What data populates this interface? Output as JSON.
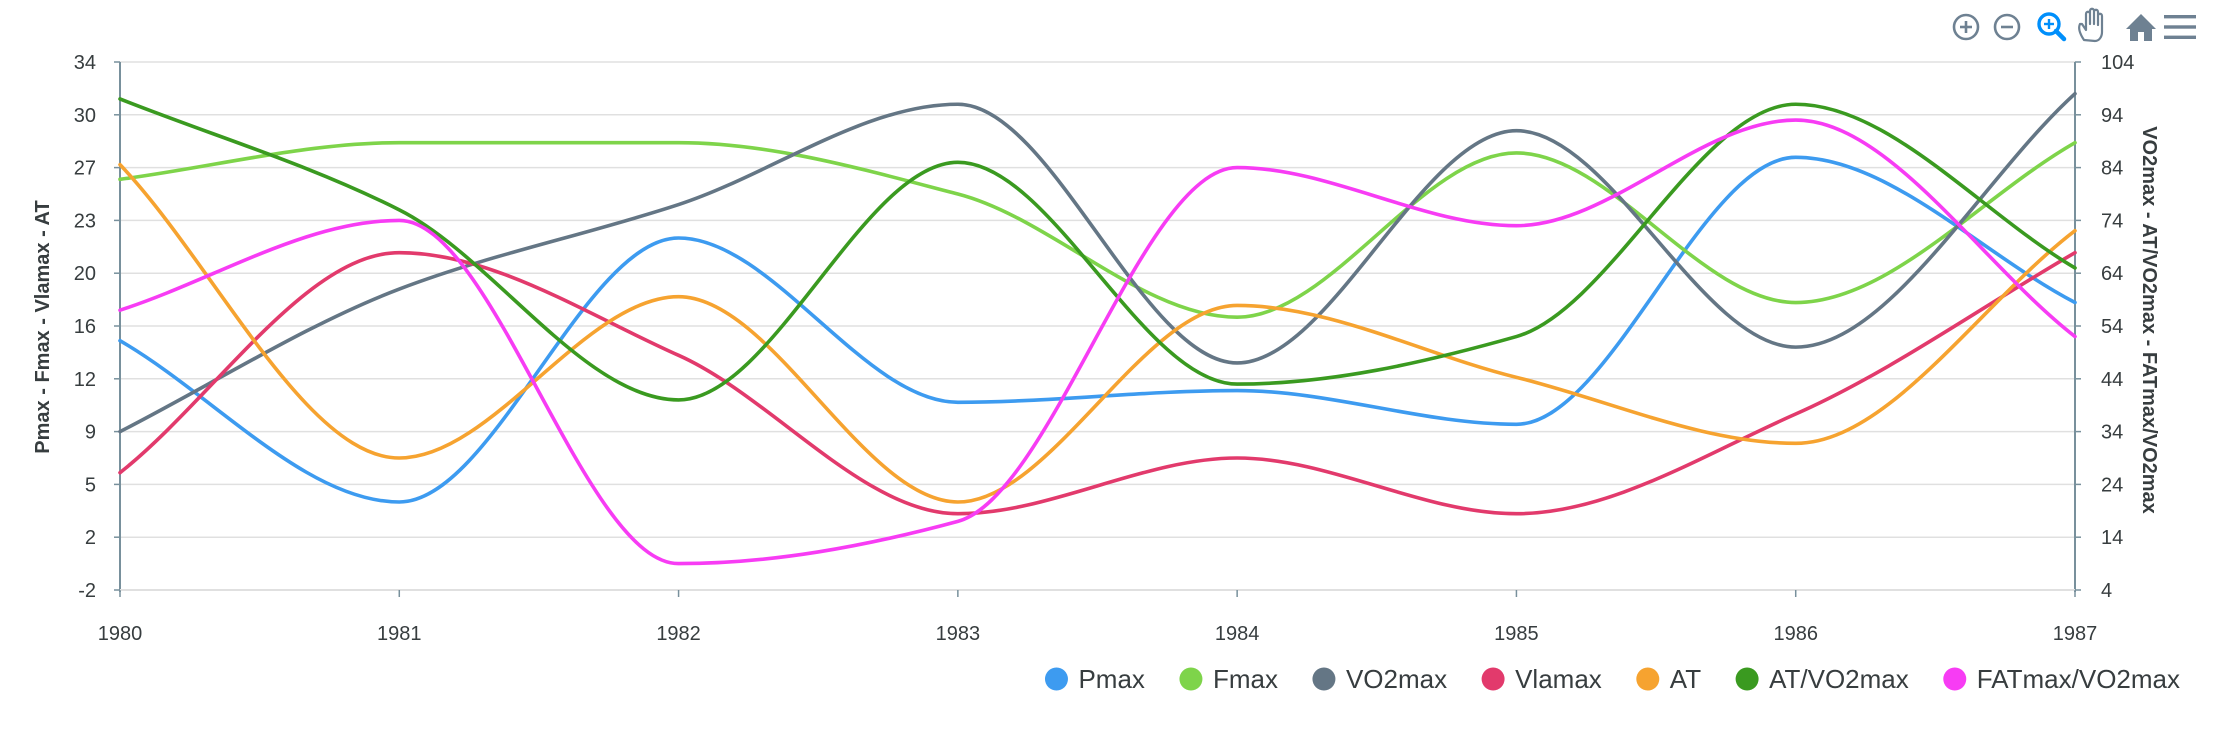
{
  "toolbar": {
    "zoom_in": "zoom-in-icon",
    "zoom_out": "zoom-out-icon",
    "selection_zoom": "magnifier-icon",
    "pan": "hand-icon",
    "reset": "home-icon",
    "menu": "menu-icon"
  },
  "colors": {
    "grid": "#e0e0e0",
    "axis": "#78909c",
    "text": "#373d3f",
    "tool": "#6e8192",
    "tool_active": "#008ffb"
  },
  "chart_data": {
    "type": "line",
    "curve": "smooth",
    "x": [
      "1980",
      "1981",
      "1982",
      "1983",
      "1984",
      "1985",
      "1986",
      "1987"
    ],
    "y_left": {
      "title": "Pmax - Fmax - Vlamax - AT",
      "min": -2,
      "max": 34,
      "ticks": [
        "34",
        "30",
        "27",
        "23",
        "20",
        "16",
        "12",
        "9",
        "5",
        "2",
        "-2"
      ]
    },
    "y_right": {
      "title": "VO2max - AT/VO2max - FATmax/VO2max",
      "min": 4,
      "max": 104,
      "ticks": [
        "104",
        "94",
        "84",
        "74",
        "64",
        "54",
        "44",
        "34",
        "24",
        "14",
        "4"
      ]
    },
    "legend_position": "bottom-right",
    "series": [
      {
        "name": "Pmax",
        "axis": "left",
        "color": "#3d9bf0",
        "values": [
          15.0,
          4.0,
          22.0,
          10.8,
          11.6,
          9.3,
          27.5,
          17.6
        ]
      },
      {
        "name": "Fmax",
        "axis": "left",
        "color": "#7ed44a",
        "values": [
          26.0,
          28.5,
          28.5,
          25.0,
          16.6,
          27.8,
          17.6,
          28.5
        ]
      },
      {
        "name": "VO2max",
        "axis": "right",
        "color": "#647685",
        "values": [
          34.0,
          61.0,
          77.0,
          96.0,
          47.0,
          91.0,
          50.0,
          98.0
        ]
      },
      {
        "name": "Vlamax",
        "axis": "left",
        "color": "#e23a6c",
        "values": [
          6.0,
          21.0,
          14.0,
          3.2,
          7.0,
          3.2,
          10.0,
          21.0
        ]
      },
      {
        "name": "AT",
        "axis": "left",
        "color": "#f6a330",
        "values": [
          27.0,
          7.0,
          18.0,
          4.0,
          17.4,
          12.5,
          8.0,
          22.5
        ]
      },
      {
        "name": "AT/VO2max",
        "axis": "right",
        "color": "#3a9a20",
        "values": [
          97.0,
          76.0,
          40.0,
          85.0,
          43.0,
          52.0,
          96.0,
          65.0
        ]
      },
      {
        "name": "FATmax/VO2max",
        "axis": "right",
        "color": "#f73cf4",
        "values": [
          57.0,
          74.0,
          9.0,
          17.0,
          84.0,
          73.0,
          93.0,
          52.0
        ]
      }
    ]
  }
}
